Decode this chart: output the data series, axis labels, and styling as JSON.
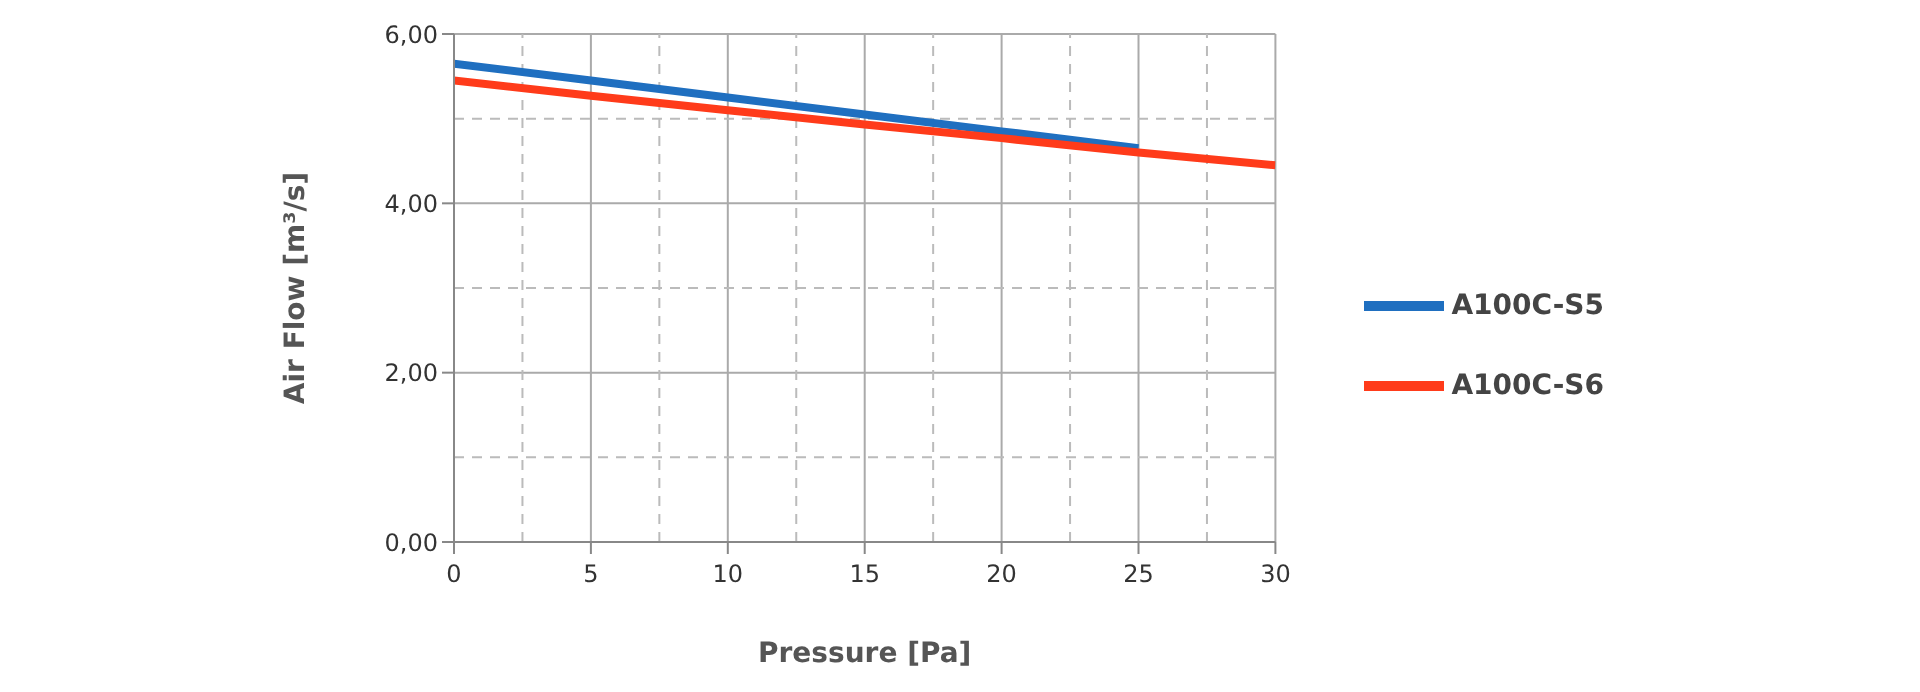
{
  "chart_data": {
    "type": "line",
    "xlabel": "Pressure [Pa]",
    "ylabel": "Air Flow [m³/s]",
    "x": [
      0,
      5,
      10,
      15,
      20,
      25,
      30
    ],
    "series": [
      {
        "name": "A100C-S5",
        "color": "#1f6fc0",
        "values": [
          5.65,
          5.45,
          5.25,
          5.05,
          4.85,
          4.65,
          null
        ]
      },
      {
        "name": "A100C-S6",
        "color": "#ff3b1a",
        "values": [
          5.45,
          5.27,
          5.1,
          4.93,
          4.77,
          4.6,
          4.45
        ]
      }
    ],
    "xlim": [
      0,
      30
    ],
    "xticks": [
      0,
      5,
      10,
      15,
      20,
      25,
      30
    ],
    "ylim": [
      0,
      6
    ],
    "yticks": [
      {
        "value": 0,
        "label": "0,00"
      },
      {
        "value": 2,
        "label": "2,00"
      },
      {
        "value": 4,
        "label": "4,00"
      },
      {
        "value": 6,
        "label": "6,00"
      }
    ],
    "grid": true,
    "legend": "right",
    "marker": "none",
    "line_style": "solid"
  }
}
